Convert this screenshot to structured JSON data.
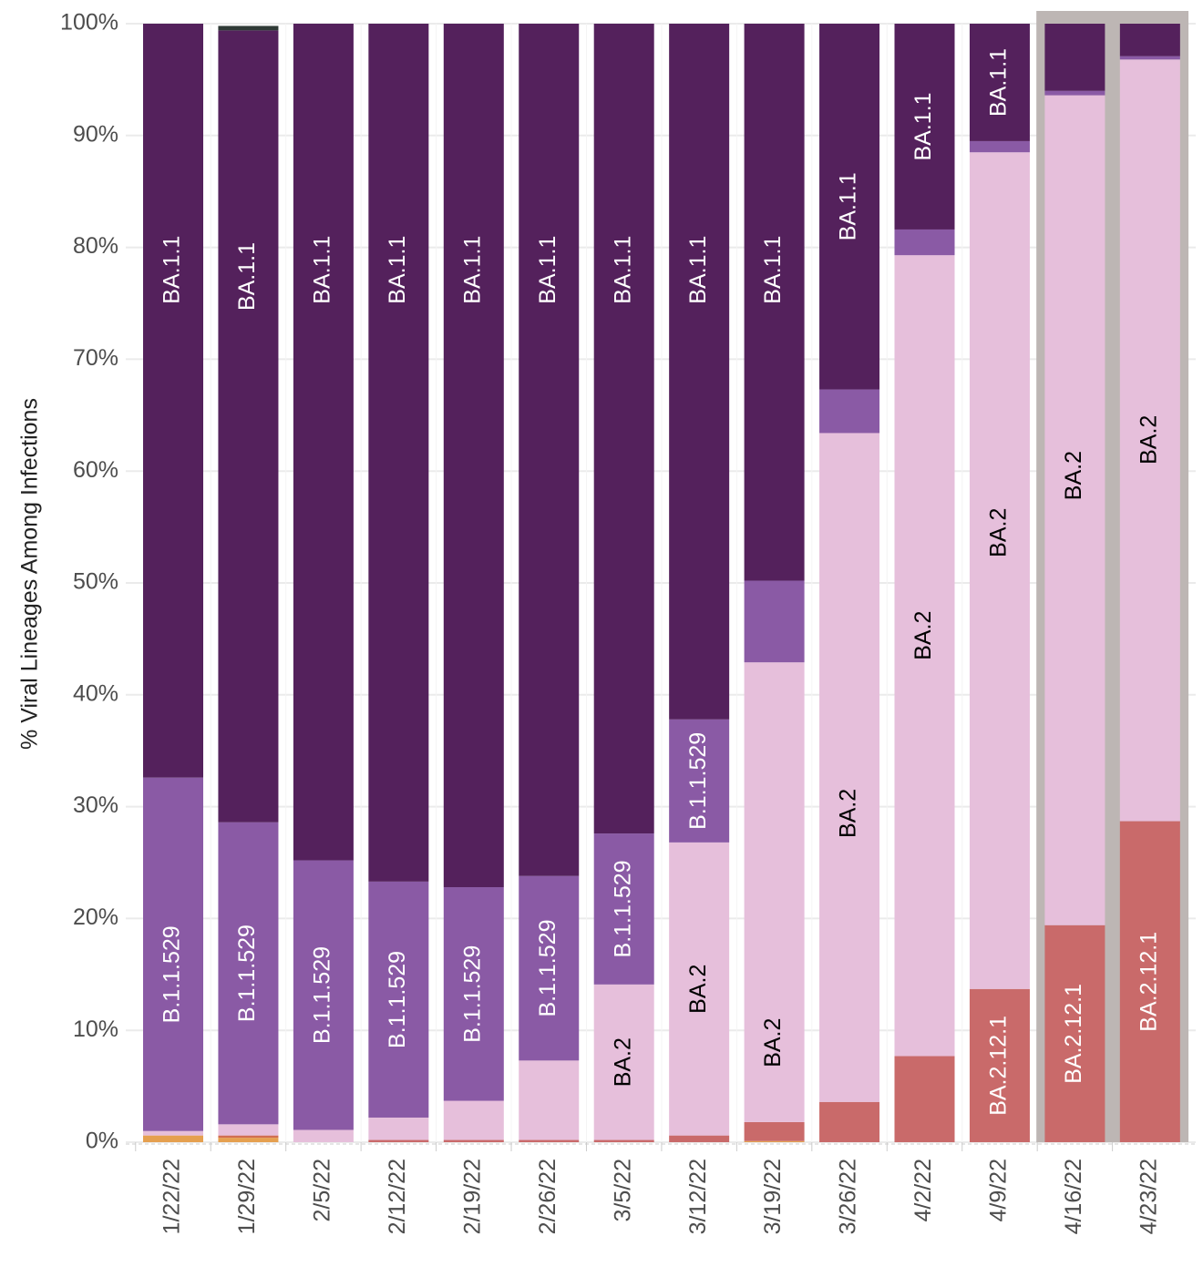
{
  "chart_data": {
    "type": "bar",
    "stacked": true,
    "orientation": "vertical",
    "title": "",
    "xlabel": "",
    "ylabel": "% Viral Lineages Among Infections",
    "ylim": [
      0,
      100
    ],
    "yticks": [
      "0%",
      "10%",
      "20%",
      "30%",
      "40%",
      "50%",
      "60%",
      "70%",
      "80%",
      "90%",
      "100%"
    ],
    "grid": true,
    "legend": "none",
    "categories": [
      "1/22/22",
      "1/29/22",
      "2/5/22",
      "2/12/22",
      "2/19/22",
      "2/26/22",
      "3/5/22",
      "3/12/22",
      "3/19/22",
      "3/26/22",
      "4/2/22",
      "4/9/22",
      "4/16/22",
      "4/23/22"
    ],
    "highlighted_categories": [
      "4/16/22",
      "4/23/22"
    ],
    "series": [
      {
        "name": "",
        "color": "#e5a050",
        "values": [
          0.6,
          0.4,
          0,
          0,
          0,
          0,
          0,
          0,
          0.1,
          0,
          0,
          0,
          0,
          0
        ]
      },
      {
        "name": "",
        "color": "#d16e50",
        "values": [
          0,
          0.2,
          0,
          0,
          0,
          0,
          0,
          0,
          0,
          0,
          0,
          0,
          0,
          0
        ]
      },
      {
        "name": "BA.2.12.1",
        "color": "#c96a6a",
        "values": [
          0,
          0,
          0,
          0.2,
          0.2,
          0.2,
          0.2,
          0.6,
          1.7,
          3.6,
          7.7,
          13.7,
          19.4,
          28.7
        ]
      },
      {
        "name": "BA.2",
        "color": "#e6bfdb",
        "values": [
          0.4,
          1.0,
          1.1,
          2.0,
          3.5,
          7.1,
          13.9,
          26.2,
          41.1,
          59.8,
          71.6,
          74.8,
          74.2,
          68.1
        ]
      },
      {
        "name": "B.1.1.529",
        "color": "#8a5aa5",
        "values": [
          31.6,
          27.0,
          24.1,
          21.1,
          19.1,
          16.5,
          13.5,
          11.0,
          7.3,
          3.9,
          2.3,
          1.0,
          0.4,
          0.3
        ]
      },
      {
        "name": "BA.1.1",
        "color": "#54215c",
        "values": [
          67.4,
          70.8,
          74.8,
          76.7,
          77.2,
          76.2,
          72.4,
          62.2,
          49.8,
          32.7,
          18.4,
          10.5,
          6.0,
          2.9
        ]
      },
      {
        "name": "",
        "color": "#2f3a36",
        "values": [
          0,
          0.4,
          0,
          0,
          0,
          0,
          0,
          0,
          0,
          0,
          0,
          0,
          0,
          0
        ]
      }
    ],
    "bar_labels": [
      {
        "category": "1/22/22",
        "labels": [
          {
            "series": "B.1.1.529",
            "text": "B.1.1.529"
          },
          {
            "series": "BA.1.1",
            "text": "BA.1.1"
          }
        ]
      },
      {
        "category": "1/29/22",
        "labels": [
          {
            "series": "B.1.1.529",
            "text": "B.1.1.529"
          },
          {
            "series": "BA.1.1",
            "text": "BA.1.1"
          }
        ]
      },
      {
        "category": "2/5/22",
        "labels": [
          {
            "series": "B.1.1.529",
            "text": "B.1.1.529"
          },
          {
            "series": "BA.1.1",
            "text": "BA.1.1"
          }
        ]
      },
      {
        "category": "2/12/22",
        "labels": [
          {
            "series": "B.1.1.529",
            "text": "B.1.1.529"
          },
          {
            "series": "BA.1.1",
            "text": "BA.1.1"
          }
        ]
      },
      {
        "category": "2/19/22",
        "labels": [
          {
            "series": "B.1.1.529",
            "text": "B.1.1.529"
          },
          {
            "series": "BA.1.1",
            "text": "BA.1.1"
          }
        ]
      },
      {
        "category": "2/26/22",
        "labels": [
          {
            "series": "B.1.1.529",
            "text": "B.1.1.529"
          },
          {
            "series": "BA.1.1",
            "text": "BA.1.1"
          }
        ]
      },
      {
        "category": "3/5/22",
        "labels": [
          {
            "series": "BA.2",
            "text": "BA.2"
          },
          {
            "series": "B.1.1.529",
            "text": "B.1.1.529"
          },
          {
            "series": "BA.1.1",
            "text": "BA.1.1"
          }
        ]
      },
      {
        "category": "3/12/22",
        "labels": [
          {
            "series": "BA.2",
            "text": "BA.2"
          },
          {
            "series": "B.1.1.529",
            "text": "B.1.1.529"
          },
          {
            "series": "BA.1.1",
            "text": "BA.1.1"
          }
        ]
      },
      {
        "category": "3/19/22",
        "labels": [
          {
            "series": "BA.2",
            "text": "BA.2"
          },
          {
            "series": "BA.1.1",
            "text": "BA.1.1"
          }
        ]
      },
      {
        "category": "3/26/22",
        "labels": [
          {
            "series": "BA.2",
            "text": "BA.2"
          },
          {
            "series": "BA.1.1",
            "text": "BA.1.1"
          }
        ]
      },
      {
        "category": "4/2/22",
        "labels": [
          {
            "series": "BA.2",
            "text": "BA.2"
          },
          {
            "series": "BA.1.1",
            "text": "BA.1.1"
          }
        ]
      },
      {
        "category": "4/9/22",
        "labels": [
          {
            "series": "BA.2.12.1",
            "text": "BA.2.12.1"
          },
          {
            "series": "BA.2",
            "text": "BA.2"
          },
          {
            "series": "BA.1.1",
            "text": "BA.1.1"
          }
        ]
      },
      {
        "category": "4/16/22",
        "labels": [
          {
            "series": "BA.2.12.1",
            "text": "BA.2.12.1"
          },
          {
            "series": "BA.2",
            "text": "BA.2"
          }
        ]
      },
      {
        "category": "4/23/22",
        "labels": [
          {
            "series": "BA.2.12.1",
            "text": "BA.2.12.1"
          },
          {
            "series": "BA.2",
            "text": "BA.2"
          }
        ]
      }
    ]
  },
  "colors": {
    "highlight_box": "#bdb6b4",
    "grid": "#ebebeb",
    "label_on_dark": "#ffffff",
    "label_on_light": "#000000"
  }
}
